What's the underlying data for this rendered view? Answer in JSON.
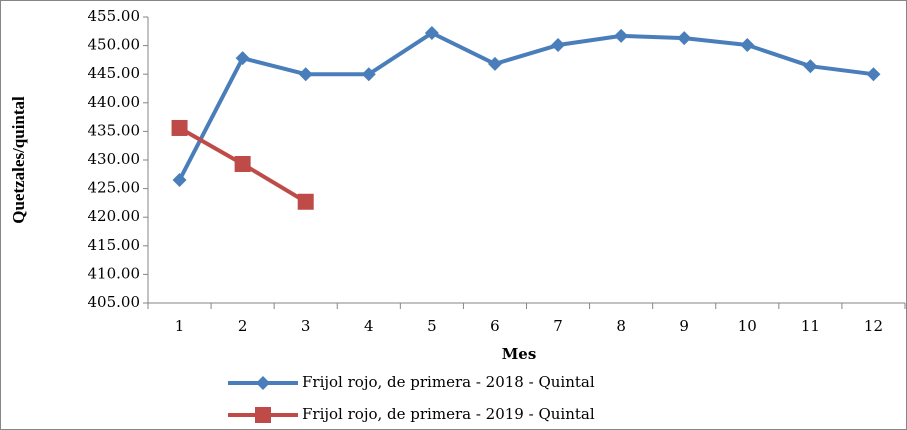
{
  "chart_data": {
    "type": "line",
    "x_label": "Mes",
    "y_label": "Quetzales/quintal",
    "categories": [
      "1",
      "2",
      "3",
      "4",
      "5",
      "6",
      "7",
      "8",
      "9",
      "10",
      "11",
      "12"
    ],
    "series": [
      {
        "name": "Frijol rojo, de primera - 2018 - Quintal",
        "color": "#4a7ebb",
        "marker": "diamond",
        "values": [
          426.5,
          447.8,
          445.0,
          445.0,
          452.2,
          446.8,
          450.1,
          451.7,
          451.3,
          450.1,
          446.4,
          445.0
        ]
      },
      {
        "name": "Frijol rojo, de primera - 2019 - Quintal",
        "color": "#be4b48",
        "marker": "square",
        "values": [
          435.6,
          429.3,
          422.7,
          null,
          null,
          null,
          null,
          null,
          null,
          null,
          null,
          null
        ]
      }
    ],
    "ylim": [
      405,
      455
    ],
    "yticks": [
      {
        "value": 405,
        "label": "405.00"
      },
      {
        "value": 410,
        "label": "410.00"
      },
      {
        "value": 415,
        "label": "415.00"
      },
      {
        "value": 420,
        "label": "420.00"
      },
      {
        "value": 425,
        "label": "425.00"
      },
      {
        "value": 430,
        "label": "430.00"
      },
      {
        "value": 435,
        "label": "435.00"
      },
      {
        "value": 440,
        "label": "440.00"
      },
      {
        "value": 445,
        "label": "445.00"
      },
      {
        "value": 450,
        "label": "450.00"
      },
      {
        "value": 455,
        "label": "455.00"
      }
    ],
    "grid": false,
    "legend": "bottom"
  }
}
